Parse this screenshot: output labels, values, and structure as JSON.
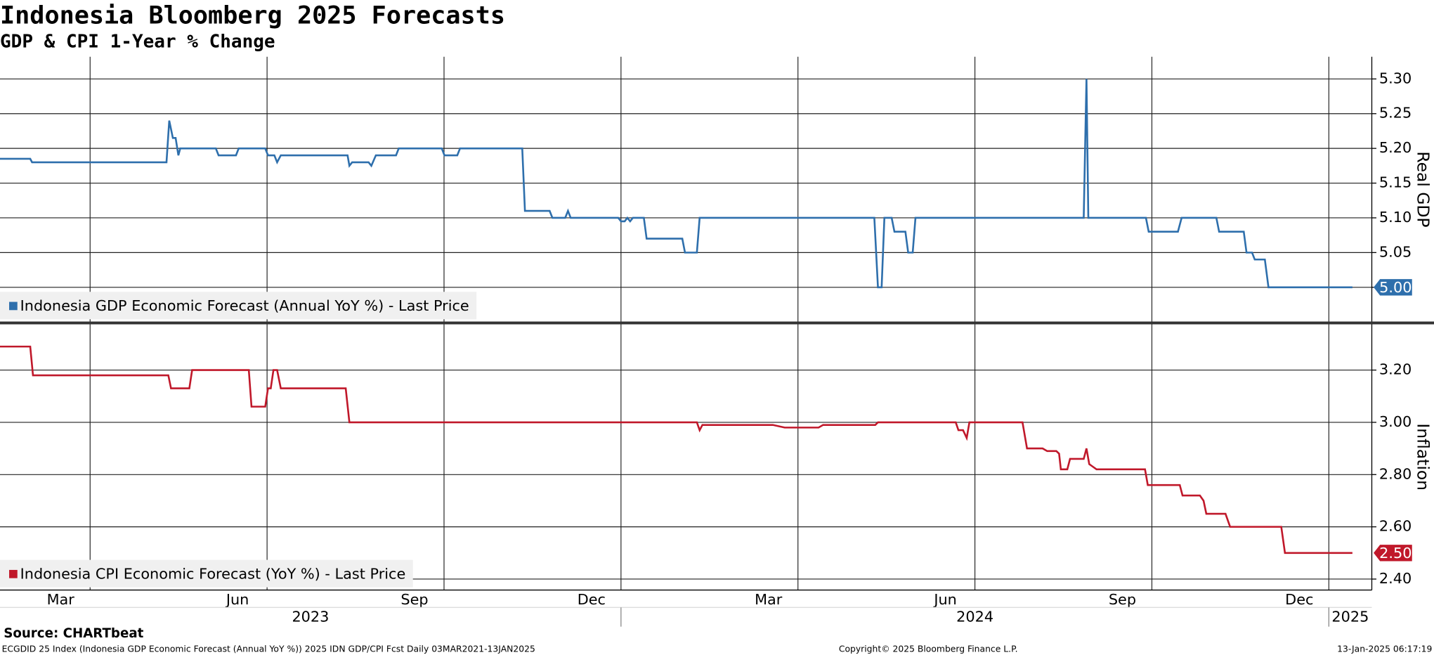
{
  "title": "Indonesia Bloomberg 2025 Forecasts",
  "subtitle": "GDP & CPI 1-Year % Change",
  "source": "Source: CHARTbeat",
  "footer": {
    "left": "ECGDID 25 Index (Indonesia GDP Economic Forecast (Annual YoY %)) 2025 IDN GDP/CPI Fcst  Daily 03MAR2021-13JAN2025",
    "center": "Copyright© 2025 Bloomberg Finance L.P.",
    "right": "13-Jan-2025 06:17:19"
  },
  "x_axis": {
    "xlim": [
      2023.1227,
      2025.0607
    ],
    "xticks": [
      {
        "value": 2023.2083,
        "label": "Mar"
      },
      {
        "value": 2023.4583,
        "label": "Jun"
      },
      {
        "value": 2023.7083,
        "label": "Sep"
      },
      {
        "value": 2023.9583,
        "label": "Dec"
      },
      {
        "value": 2024.2083,
        "label": "Mar"
      },
      {
        "value": 2024.4583,
        "label": "Jun"
      },
      {
        "value": 2024.7083,
        "label": "Sep"
      },
      {
        "value": 2024.9583,
        "label": "Dec"
      }
    ],
    "xgrid": [
      2023.25,
      2023.5,
      2023.75,
      2024,
      2024.25,
      2024.5,
      2024.75,
      2025
    ],
    "years": [
      2023,
      2024,
      2025
    ]
  },
  "chart_data": [
    {
      "type": "line",
      "axis_title": "Real GDP",
      "ylim": [
        4.95,
        5.332
      ],
      "yticks": [
        {
          "value": 5.0,
          "label": "5.00"
        },
        {
          "value": 5.05,
          "label": "5.05"
        },
        {
          "value": 5.1,
          "label": "5.10"
        },
        {
          "value": 5.15,
          "label": "5.15"
        },
        {
          "value": 5.2,
          "label": "5.20"
        },
        {
          "value": 5.25,
          "label": "5.25"
        },
        {
          "value": 5.3,
          "label": "5.30"
        }
      ],
      "grid": true,
      "legend": "bottom-left",
      "series": [
        {
          "name": "Indonesia GDP Economic Forecast (Annual YoY %) - Last Price",
          "color": "#2e6fac",
          "last_label": "5.00",
          "x": [
            2023.1227,
            2023.1654,
            2023.168,
            2023.3579,
            2023.3618,
            2023.3669,
            2023.3708,
            2023.3747,
            2023.3773,
            2023.4276,
            2023.4315,
            2023.4561,
            2023.4599,
            2023.4974,
            2023.5013,
            2023.5103,
            2023.5142,
            2023.5194,
            2023.6137,
            2023.6163,
            2023.6202,
            2023.6434,
            2023.6473,
            2023.6537,
            2023.6822,
            2023.686,
            2023.7468,
            2023.7506,
            2023.7687,
            2023.7726,
            2023.8605,
            2023.8643,
            2023.8992,
            2023.9031,
            2023.9212,
            2023.9251,
            2023.9289,
            2023.9961,
            2024.0,
            2024.0052,
            2024.009,
            2024.0129,
            2024.0168,
            2024.0323,
            2024.0362,
            2024.0866,
            2024.0904,
            2024.1072,
            2024.1111,
            2024.3579,
            2024.363,
            2024.3682,
            2024.3721,
            2024.3824,
            2024.3863,
            2024.4018,
            2024.4057,
            2024.4121,
            2024.416,
            2024.6537,
            2024.6576,
            2024.6602,
            2024.7416,
            2024.7455,
            2024.7868,
            2024.792,
            2024.8411,
            2024.845,
            2024.8798,
            2024.8837,
            2024.8915,
            2024.8953,
            2024.9096,
            2024.9147,
            2025.0333
          ],
          "values": [
            5.185,
            5.185,
            5.18,
            5.18,
            5.24,
            5.215,
            5.215,
            5.19,
            5.2,
            5.2,
            5.19,
            5.19,
            5.2,
            5.2,
            5.19,
            5.19,
            5.18,
            5.19,
            5.19,
            5.175,
            5.18,
            5.18,
            5.175,
            5.19,
            5.19,
            5.2,
            5.2,
            5.19,
            5.19,
            5.2,
            5.2,
            5.11,
            5.11,
            5.1,
            5.1,
            5.11,
            5.1,
            5.1,
            5.095,
            5.095,
            5.1,
            5.095,
            5.1,
            5.1,
            5.07,
            5.07,
            5.05,
            5.05,
            5.1,
            5.1,
            5.0,
            5.0,
            5.1,
            5.1,
            5.08,
            5.08,
            5.05,
            5.05,
            5.1,
            5.1,
            5.3,
            5.1,
            5.1,
            5.08,
            5.08,
            5.1,
            5.1,
            5.08,
            5.08,
            5.05,
            5.05,
            5.04,
            5.04,
            5.0,
            5.0
          ]
        }
      ]
    },
    {
      "type": "line",
      "axis_title": "Inflation",
      "ylim": [
        2.358,
        3.377
      ],
      "yticks": [
        {
          "value": 2.4,
          "label": "2.40"
        },
        {
          "value": 2.6,
          "label": "2.60"
        },
        {
          "value": 2.8,
          "label": "2.80"
        },
        {
          "value": 3.0,
          "label": "3.00"
        },
        {
          "value": 3.2,
          "label": "3.20"
        }
      ],
      "grid": true,
      "legend": "bottom-left",
      "series": [
        {
          "name": "Indonesia CPI Economic Forecast (YoY %) - Last Price",
          "color": "#c0182a",
          "last_label": "2.50",
          "x": [
            2023.1227,
            2023.1654,
            2023.1693,
            2023.3605,
            2023.3643,
            2023.3902,
            2023.3941,
            2023.4742,
            2023.478,
            2023.4974,
            2023.5013,
            2023.5052,
            2023.509,
            2023.5142,
            2023.5194,
            2023.6111,
            2023.6163,
            2024.1072,
            2024.1111,
            2024.115,
            2024.2145,
            2024.2313,
            2024.2791,
            2024.2855,
            2024.3592,
            2024.363,
            2024.4729,
            2024.4767,
            2024.4832,
            2024.4884,
            2024.4922,
            2024.5672,
            2024.5736,
            2024.5956,
            2024.6021,
            2024.615,
            2024.6189,
            2024.6214,
            2024.6305,
            2024.6344,
            2024.6537,
            2024.6576,
            2024.6615,
            2024.6667,
            2024.6718,
            2024.7403,
            2024.7442,
            2024.7894,
            2024.7933,
            2024.8178,
            2024.823,
            2024.8269,
            2024.854,
            2024.8605,
            2024.9328,
            2024.938,
            2025.0333
          ],
          "values": [
            3.29,
            3.29,
            3.18,
            3.18,
            3.13,
            3.13,
            3.2,
            3.2,
            3.06,
            3.06,
            3.13,
            3.13,
            3.2,
            3.2,
            3.13,
            3.13,
            3.0,
            3.0,
            2.97,
            2.99,
            2.99,
            2.98,
            2.98,
            2.99,
            2.99,
            3.0,
            3.0,
            2.97,
            2.97,
            2.94,
            3.0,
            3.0,
            2.9,
            2.9,
            2.89,
            2.89,
            2.88,
            2.82,
            2.82,
            2.86,
            2.86,
            2.9,
            2.84,
            2.83,
            2.82,
            2.82,
            2.76,
            2.76,
            2.72,
            2.72,
            2.7,
            2.65,
            2.65,
            2.6,
            2.6,
            2.5,
            2.5
          ]
        }
      ]
    }
  ]
}
